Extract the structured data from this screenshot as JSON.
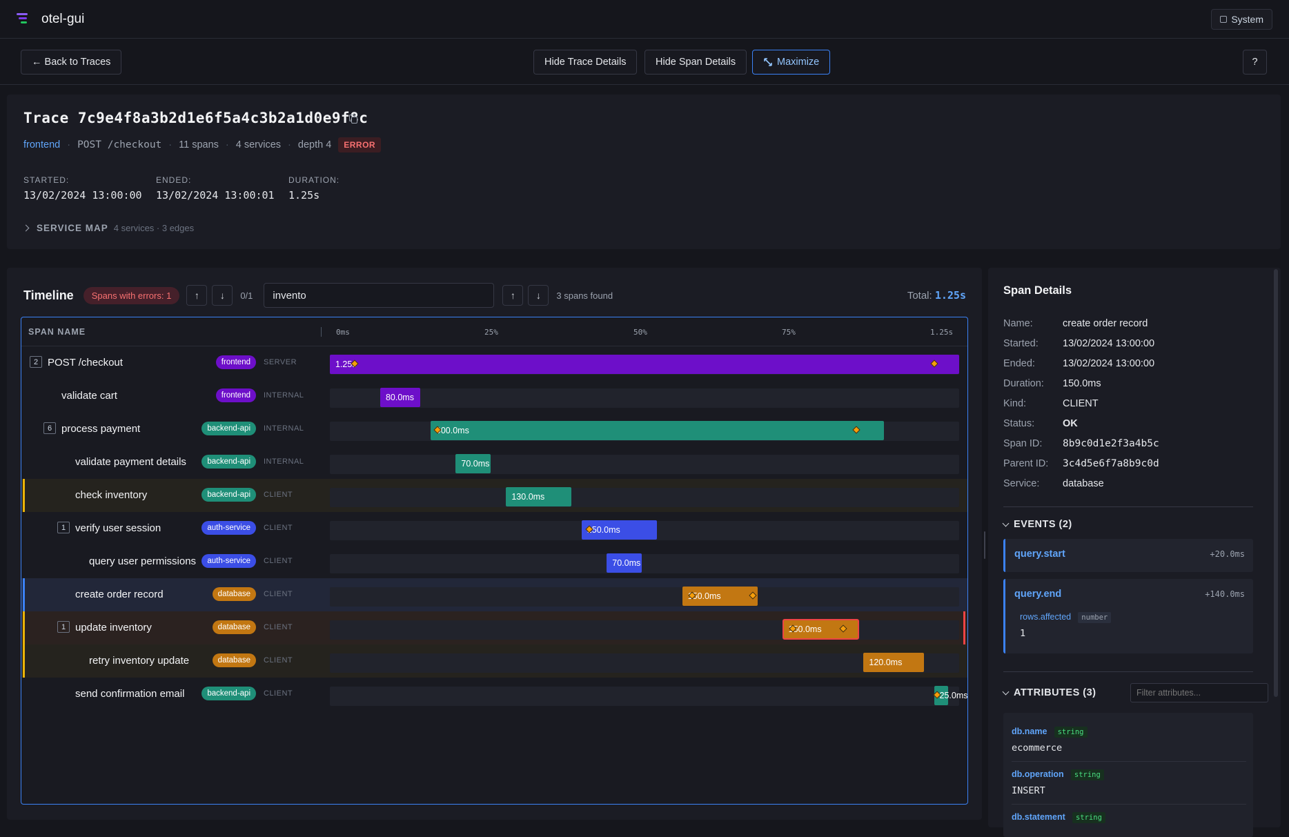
{
  "app": {
    "title": "otel-gui",
    "system_label": "System"
  },
  "toolbar": {
    "back_label": "← Back to Traces",
    "hide_trace_label": "Hide Trace Details",
    "hide_span_label": "Hide Span Details",
    "maximize_label": "Maximize",
    "help_label": "?"
  },
  "trace": {
    "title": "Trace 7c9e4f8a3b2d1e6f5a4c3b2a1d0e9f8c",
    "service": "frontend",
    "endpoint": "POST /checkout",
    "spans": "11 spans",
    "services": "4 services",
    "depth": "depth 4",
    "status": "ERROR",
    "started_label": "STARTED:",
    "started": "13/02/2024 13:00:00",
    "ended_label": "ENDED:",
    "ended": "13/02/2024 13:00:01",
    "duration_label": "DURATION:",
    "duration": "1.25s",
    "service_map_label": "SERVICE MAP",
    "service_map_sub": "4 services · 3 edges"
  },
  "timeline": {
    "title": "Timeline",
    "errors_label": "Spans with errors: 1",
    "error_nav": "0/1",
    "search_value": "invento",
    "found": "3 spans found",
    "total_label": "Total:",
    "total_value": "1.25s",
    "col_span_name": "SPAN NAME",
    "ticks": [
      "0ms",
      "25%",
      "50%",
      "75%",
      "1.25s"
    ]
  },
  "spans": [
    {
      "name": "POST /checkout",
      "child_count": "2",
      "service": "frontend",
      "kind": "SERVER",
      "start": 0.0,
      "end": 1.0,
      "label": "1.25s",
      "events": [
        0.04,
        0.96
      ],
      "depth": 0,
      "hl": ""
    },
    {
      "name": "validate cart",
      "child_count": "",
      "service": "frontend",
      "kind": "INTERNAL",
      "start": 0.08,
      "end": 0.144,
      "label": "80.0ms",
      "events": [],
      "depth": 1,
      "hl": ""
    },
    {
      "name": "process payment",
      "child_count": "6",
      "service": "backend-api",
      "kind": "INTERNAL",
      "start": 0.16,
      "end": 0.88,
      "label": "900.0ms",
      "events": [
        0.016,
        0.94
      ],
      "depth": 1,
      "hl": ""
    },
    {
      "name": "validate payment details",
      "child_count": "",
      "service": "backend-api",
      "kind": "INTERNAL",
      "start": 0.2,
      "end": 0.256,
      "label": "70.0ms",
      "events": [],
      "depth": 2,
      "hl": ""
    },
    {
      "name": "check inventory",
      "child_count": "",
      "service": "backend-api",
      "kind": "CLIENT",
      "start": 0.28,
      "end": 0.384,
      "label": "130.0ms",
      "events": [],
      "depth": 2,
      "hl": "warn"
    },
    {
      "name": "verify user session",
      "child_count": "1",
      "service": "auth-service",
      "kind": "CLIENT",
      "start": 0.4,
      "end": 0.52,
      "label": "150.0ms",
      "events": [
        0.1
      ],
      "depth": 2,
      "hl": ""
    },
    {
      "name": "query user permissions",
      "child_count": "",
      "service": "auth-service",
      "kind": "CLIENT",
      "start": 0.44,
      "end": 0.496,
      "label": "70.0ms",
      "events": [],
      "depth": 3,
      "hl": ""
    },
    {
      "name": "create order record",
      "child_count": "",
      "service": "database",
      "kind": "CLIENT",
      "start": 0.56,
      "end": 0.68,
      "label": "150.0ms",
      "events": [
        0.133,
        0.933
      ],
      "depth": 2,
      "hl": "sel"
    },
    {
      "name": "update inventory",
      "child_count": "1",
      "service": "database",
      "kind": "CLIENT",
      "start": 0.72,
      "end": 0.84,
      "label": "150.0ms",
      "events": [
        0.133,
        0.8
      ],
      "depth": 2,
      "hl": "err"
    },
    {
      "name": "retry inventory update",
      "child_count": "",
      "service": "database",
      "kind": "CLIENT",
      "start": 0.848,
      "end": 0.944,
      "label": "120.0ms",
      "events": [],
      "depth": 3,
      "hl": "warn"
    },
    {
      "name": "send confirmation email",
      "child_count": "",
      "service": "backend-api",
      "kind": "CLIENT",
      "start": 0.96,
      "end": 0.98,
      "label": "25.0ms",
      "events": [
        0.2
      ],
      "depth": 2,
      "hl": ""
    }
  ],
  "service_colors": {
    "frontend": "#6d0fc9",
    "backend-api": "#1f8f78",
    "auth-service": "#3b4ee6",
    "database": "#c27712"
  },
  "details": {
    "title": "Span Details",
    "fields": [
      {
        "k": "Name:",
        "v": "create order record"
      },
      {
        "k": "Started:",
        "v": "13/02/2024 13:00:00"
      },
      {
        "k": "Ended:",
        "v": "13/02/2024 13:00:00"
      },
      {
        "k": "Duration:",
        "v": "150.0ms"
      },
      {
        "k": "Kind:",
        "v": "CLIENT"
      },
      {
        "k": "Status:",
        "v": "OK"
      },
      {
        "k": "Span ID:",
        "v": "8b9c0d1e2f3a4b5c"
      },
      {
        "k": "Parent ID:",
        "v": "3c4d5e6f7a8b9c0d"
      },
      {
        "k": "Service:",
        "v": "database"
      }
    ],
    "events_label": "EVENTS (2)",
    "events": [
      {
        "name": "query.start",
        "offset": "+20.0ms"
      },
      {
        "name": "query.end",
        "offset": "+140.0ms",
        "attr_key": "rows.affected",
        "attr_type": "number",
        "attr_value": "1"
      }
    ],
    "attributes_label": "ATTRIBUTES (3)",
    "filter_placeholder": "Filter attributes...",
    "attributes": [
      {
        "key": "db.name",
        "type": "string",
        "value": "ecommerce"
      },
      {
        "key": "db.operation",
        "type": "string",
        "value": "INSERT"
      },
      {
        "key": "db.statement",
        "type": "string",
        "value": ""
      }
    ]
  }
}
